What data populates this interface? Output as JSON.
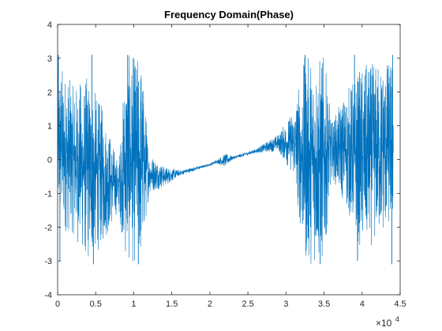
{
  "chart_data": {
    "type": "line",
    "title": "Frequency Domain(Phase)",
    "xlabel": "",
    "ylabel": "",
    "xlim": [
      0,
      45000
    ],
    "ylim": [
      -4,
      4
    ],
    "x_ticks": [
      0,
      5000,
      10000,
      15000,
      20000,
      25000,
      30000,
      35000,
      40000,
      45000
    ],
    "x_tick_labels": [
      "0",
      "0.5",
      "1",
      "1.5",
      "2",
      "2.5",
      "3",
      "3.5",
      "4",
      "4.5"
    ],
    "x_exponent_label": "×10",
    "x_exponent_power": "4",
    "y_ticks": [
      -4,
      -3,
      -2,
      -1,
      0,
      1,
      2,
      3,
      4
    ],
    "y_tick_labels": [
      "-4",
      "-3",
      "-2",
      "-1",
      "0",
      "1",
      "2",
      "3",
      "4"
    ],
    "grid": false,
    "legend": "none",
    "line_color": "#0072BD",
    "series": [
      {
        "x_range": [
          0,
          44100
        ],
        "envelope": [
          {
            "x": 0,
            "center": 0.5,
            "spread": 2.6
          },
          {
            "x": 2000,
            "center": 0.0,
            "spread": 2.2
          },
          {
            "x": 4000,
            "center": -0.3,
            "spread": 2.8
          },
          {
            "x": 6000,
            "center": -0.5,
            "spread": 2.0
          },
          {
            "x": 8000,
            "center": -0.8,
            "spread": 0.7
          },
          {
            "x": 9000,
            "center": 0.0,
            "spread": 3.1
          },
          {
            "x": 11000,
            "center": 0.0,
            "spread": 3.1
          },
          {
            "x": 12000,
            "center": -0.4,
            "spread": 0.6
          },
          {
            "x": 14000,
            "center": -0.5,
            "spread": 0.3
          },
          {
            "x": 16000,
            "center": -0.4,
            "spread": 0.08
          },
          {
            "x": 20000,
            "center": -0.15,
            "spread": 0.03
          },
          {
            "x": 21000,
            "center": -0.05,
            "spread": 0.06
          },
          {
            "x": 22000,
            "center": -0.02,
            "spread": 0.2
          },
          {
            "x": 23000,
            "center": 0.05,
            "spread": 0.05
          },
          {
            "x": 26000,
            "center": 0.25,
            "spread": 0.06
          },
          {
            "x": 29000,
            "center": 0.5,
            "spread": 0.25
          },
          {
            "x": 31000,
            "center": 0.5,
            "spread": 1.0
          },
          {
            "x": 32500,
            "center": 0.0,
            "spread": 3.1
          },
          {
            "x": 35000,
            "center": 0.0,
            "spread": 3.1
          },
          {
            "x": 36000,
            "center": 0.3,
            "spread": 0.8
          },
          {
            "x": 38000,
            "center": 0.3,
            "spread": 1.8
          },
          {
            "x": 40000,
            "center": 0.0,
            "spread": 2.8
          },
          {
            "x": 44100,
            "center": 0.5,
            "spread": 2.5
          }
        ],
        "spikes": [
          {
            "x": 4500,
            "y": 3.1
          },
          {
            "x": 4700,
            "y": -3.1
          },
          {
            "x": 9200,
            "y": 3.1
          },
          {
            "x": 10600,
            "y": -3.1
          },
          {
            "x": 32500,
            "y": 3.1
          },
          {
            "x": 34500,
            "y": -3.1
          },
          {
            "x": 39000,
            "y": 3.1
          },
          {
            "x": 39400,
            "y": -3.0
          },
          {
            "x": 44000,
            "y": 3.1
          },
          {
            "x": 43900,
            "y": -3.1
          },
          {
            "x": 100,
            "y": 3.1
          },
          {
            "x": 300,
            "y": -3.0
          }
        ]
      }
    ]
  }
}
